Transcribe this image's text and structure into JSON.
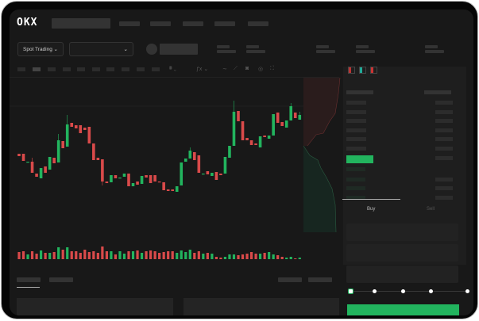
{
  "header": {
    "logo": "OKX"
  },
  "toolbar": {
    "market_select": "Spot Trading",
    "pair_select": ""
  },
  "orderbook": {
    "view_icons": [
      "orderbook-both-icon",
      "orderbook-bids-icon",
      "orderbook-asks-icon"
    ]
  },
  "trade": {
    "buy_tab": "Buy",
    "sell_tab": "Sell",
    "slider_percent": 0
  },
  "colors": {
    "up": "#22b45e",
    "down": "#d94a4a",
    "background": "#181818",
    "panel": "#1e1e1e"
  },
  "chart_data": {
    "type": "candlestick",
    "candles": [
      [
        58,
        55,
        58,
        55
      ],
      [
        58,
        49,
        58,
        49
      ],
      [
        47,
        48,
        48,
        47
      ],
      [
        48,
        34,
        53,
        34
      ],
      [
        33,
        29,
        33,
        29
      ],
      [
        27,
        40,
        40,
        27
      ],
      [
        42,
        34,
        42,
        34
      ],
      [
        38,
        54,
        54,
        38
      ],
      [
        53,
        46,
        53,
        46
      ],
      [
        47,
        75,
        83,
        47
      ],
      [
        74,
        65,
        74,
        65
      ],
      [
        67,
        95,
        107,
        67
      ],
      [
        97,
        92,
        97,
        92
      ],
      [
        94,
        90,
        94,
        90
      ],
      [
        94,
        84,
        94,
        84
      ],
      [
        91,
        88,
        91,
        88
      ],
      [
        92,
        71,
        92,
        71
      ],
      [
        71,
        50,
        71,
        50
      ],
      [
        53,
        50,
        53,
        50
      ],
      [
        51,
        23,
        51,
        18
      ],
      [
        23,
        21,
        23,
        21
      ],
      [
        22,
        31,
        31,
        22
      ],
      [
        31,
        27,
        31,
        27
      ],
      [
        27,
        28,
        28,
        27
      ],
      [
        29,
        33,
        33,
        29
      ],
      [
        33,
        17,
        33,
        17
      ],
      [
        17,
        21,
        21,
        17
      ],
      [
        23,
        19,
        23,
        19
      ],
      [
        20,
        30,
        30,
        20
      ],
      [
        31,
        28,
        31,
        28
      ],
      [
        31,
        21,
        31,
        21
      ],
      [
        31,
        23,
        31,
        23
      ],
      [
        23,
        22,
        23,
        22
      ],
      [
        22,
        12,
        22,
        12
      ],
      [
        13,
        11,
        13,
        11
      ],
      [
        13,
        11,
        13,
        11
      ],
      [
        10,
        17,
        17,
        10
      ],
      [
        18,
        47,
        47,
        18
      ],
      [
        48,
        52,
        52,
        48
      ],
      [
        52,
        62,
        66,
        52
      ],
      [
        60,
        50,
        60,
        50
      ],
      [
        56,
        34,
        56,
        34
      ],
      [
        32,
        33,
        33,
        32
      ],
      [
        36,
        32,
        36,
        32
      ],
      [
        30,
        34,
        34,
        30
      ],
      [
        35,
        25,
        35,
        25
      ],
      [
        33,
        31,
        33,
        31
      ],
      [
        33,
        54,
        54,
        33
      ],
      [
        53,
        68,
        68,
        53
      ],
      [
        68,
        111,
        125,
        68
      ],
      [
        112,
        99,
        112,
        99
      ],
      [
        99,
        75,
        99,
        75
      ],
      [
        78,
        75,
        78,
        75
      ],
      [
        75,
        69,
        75,
        69
      ],
      [
        71,
        69,
        71,
        69
      ],
      [
        66,
        80,
        80,
        66
      ],
      [
        81,
        79,
        81,
        79
      ],
      [
        77,
        81,
        81,
        77
      ],
      [
        81,
        108,
        108,
        81
      ],
      [
        110,
        97,
        110,
        97
      ],
      [
        98,
        93,
        98,
        93
      ],
      [
        91,
        100,
        100,
        91
      ],
      [
        100,
        118,
        122,
        100
      ],
      [
        110,
        103,
        110,
        103
      ],
      [
        101,
        107,
        111,
        101
      ]
    ],
    "volumes": [
      9,
      10,
      6,
      10,
      7,
      11,
      8,
      8,
      9,
      15,
      12,
      15,
      10,
      10,
      8,
      12,
      9,
      10,
      8,
      16,
      10,
      10,
      6,
      10,
      7,
      10,
      10,
      11,
      8,
      10,
      11,
      10,
      8,
      9,
      10,
      10,
      8,
      11,
      9,
      12,
      8,
      10,
      7,
      8,
      7,
      3,
      2,
      3,
      6,
      6,
      5,
      6,
      7,
      9,
      7,
      7,
      8,
      9,
      6,
      5,
      3,
      2,
      3,
      0,
      2
    ],
    "volume_colors": "match candles"
  }
}
